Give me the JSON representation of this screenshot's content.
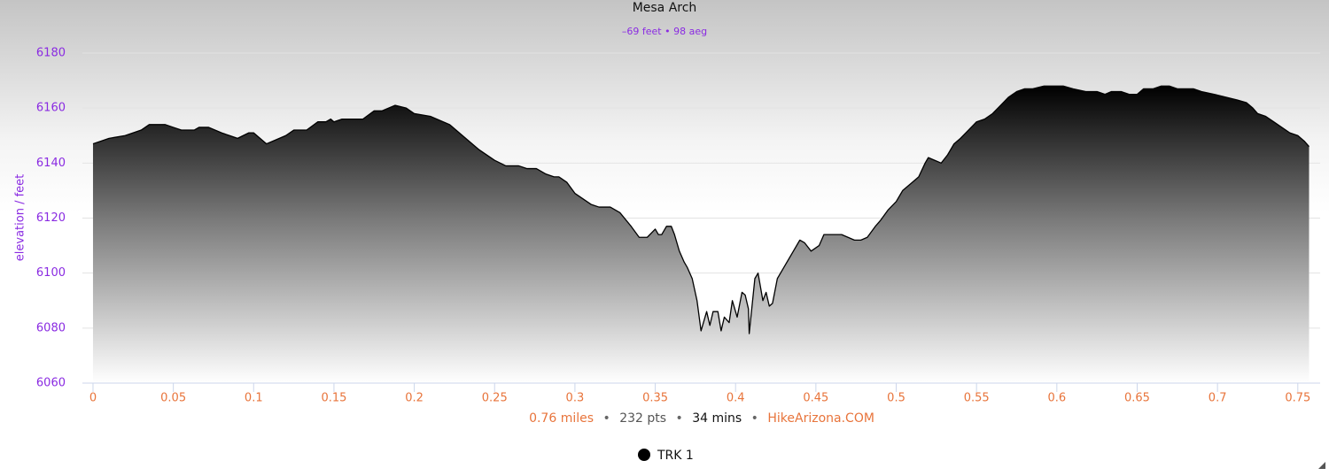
{
  "chart_data": {
    "type": "area",
    "title": "Mesa Arch",
    "subtitle": "–69 feet • 98 aeg",
    "y_label": "elevation / feet",
    "footer": {
      "items": [
        "0.76 miles",
        "232 pts",
        "34 mins",
        "HikeArizona.COM"
      ],
      "separator": "•"
    },
    "xlim": [
      -0.0066,
      0.7639
    ],
    "ylim": [
      6060,
      6180
    ],
    "xticks": [
      0,
      0.05,
      0.1,
      0.15,
      0.2,
      0.25,
      0.3,
      0.35,
      0.4,
      0.45,
      0.5,
      0.55,
      0.6,
      0.65,
      0.7,
      0.75
    ],
    "yticks": [
      6060,
      6080,
      6100,
      6120,
      6140,
      6160,
      6180
    ],
    "grid": true,
    "legend": "bottom",
    "series": [
      {
        "name": "TRK 1",
        "color": "#000000",
        "x": [
          0,
          0.005,
          0.01,
          0.02,
          0.03,
          0.035,
          0.045,
          0.05,
          0.055,
          0.063,
          0.066,
          0.072,
          0.08,
          0.085,
          0.09,
          0.097,
          0.1,
          0.108,
          0.112,
          0.12,
          0.125,
          0.133,
          0.14,
          0.145,
          0.148,
          0.15,
          0.155,
          0.168,
          0.175,
          0.18,
          0.188,
          0.195,
          0.2,
          0.21,
          0.218,
          0.222,
          0.23,
          0.24,
          0.25,
          0.257,
          0.265,
          0.27,
          0.276,
          0.282,
          0.287,
          0.29,
          0.295,
          0.3,
          0.31,
          0.315,
          0.322,
          0.328,
          0.335,
          0.34,
          0.345,
          0.35,
          0.352,
          0.354,
          0.357,
          0.36,
          0.362,
          0.365,
          0.368,
          0.37,
          0.373,
          0.376,
          0.3785,
          0.382,
          0.384,
          0.386,
          0.389,
          0.391,
          0.393,
          0.396,
          0.398,
          0.401,
          0.404,
          0.406,
          0.408,
          0.4085,
          0.412,
          0.414,
          0.417,
          0.419,
          0.421,
          0.423,
          0.426,
          0.43,
          0.436,
          0.44,
          0.443,
          0.447,
          0.452,
          0.455,
          0.466,
          0.47,
          0.474,
          0.478,
          0.482,
          0.487,
          0.49,
          0.495,
          0.5,
          0.504,
          0.51,
          0.514,
          0.518,
          0.52,
          0.524,
          0.528,
          0.532,
          0.536,
          0.54,
          0.545,
          0.55,
          0.555,
          0.56,
          0.565,
          0.57,
          0.575,
          0.58,
          0.585,
          0.592,
          0.598,
          0.604,
          0.61,
          0.618,
          0.625,
          0.63,
          0.634,
          0.64,
          0.645,
          0.65,
          0.654,
          0.66,
          0.665,
          0.67,
          0.675,
          0.685,
          0.69,
          0.698,
          0.705,
          0.712,
          0.718,
          0.722,
          0.725,
          0.73,
          0.735,
          0.74,
          0.745,
          0.75,
          0.754,
          0.757
        ],
        "values": [
          6147,
          6148,
          6149,
          6150,
          6152,
          6154,
          6154,
          6153,
          6152,
          6152,
          6153,
          6153,
          6151,
          6150,
          6149,
          6151,
          6151,
          6147,
          6148,
          6150,
          6152,
          6152,
          6155,
          6155,
          6156,
          6155,
          6156,
          6156,
          6159,
          6159,
          6161,
          6160,
          6158,
          6157,
          6155,
          6154,
          6150,
          6145,
          6141,
          6139,
          6139,
          6138,
          6138,
          6136,
          6135,
          6135,
          6133,
          6129,
          6125,
          6124,
          6124,
          6122,
          6117,
          6113,
          6113,
          6116,
          6114,
          6114,
          6117,
          6117,
          6114,
          6108,
          6104,
          6102,
          6098,
          6090,
          6079,
          6086,
          6081,
          6086,
          6086,
          6079,
          6084,
          6082,
          6090,
          6084,
          6093,
          6092,
          6087,
          6078,
          6098,
          6100,
          6090,
          6093,
          6088,
          6089,
          6098,
          6102,
          6108,
          6112,
          6111,
          6108,
          6110,
          6114,
          6114,
          6113,
          6112,
          6112,
          6113,
          6117,
          6119,
          6123,
          6126,
          6130,
          6133,
          6135,
          6140,
          6142,
          6141,
          6140,
          6143,
          6147,
          6149,
          6152,
          6155,
          6156,
          6158,
          6161,
          6164,
          6166,
          6167,
          6167,
          6168,
          6168,
          6168,
          6167,
          6166,
          6166,
          6165,
          6166,
          6166,
          6165,
          6165,
          6167,
          6167,
          6168,
          6168,
          6167,
          6167,
          6166,
          6165,
          6164,
          6163,
          6162,
          6160,
          6158,
          6157,
          6155,
          6153,
          6151,
          6150,
          6148,
          6146
        ]
      }
    ]
  }
}
